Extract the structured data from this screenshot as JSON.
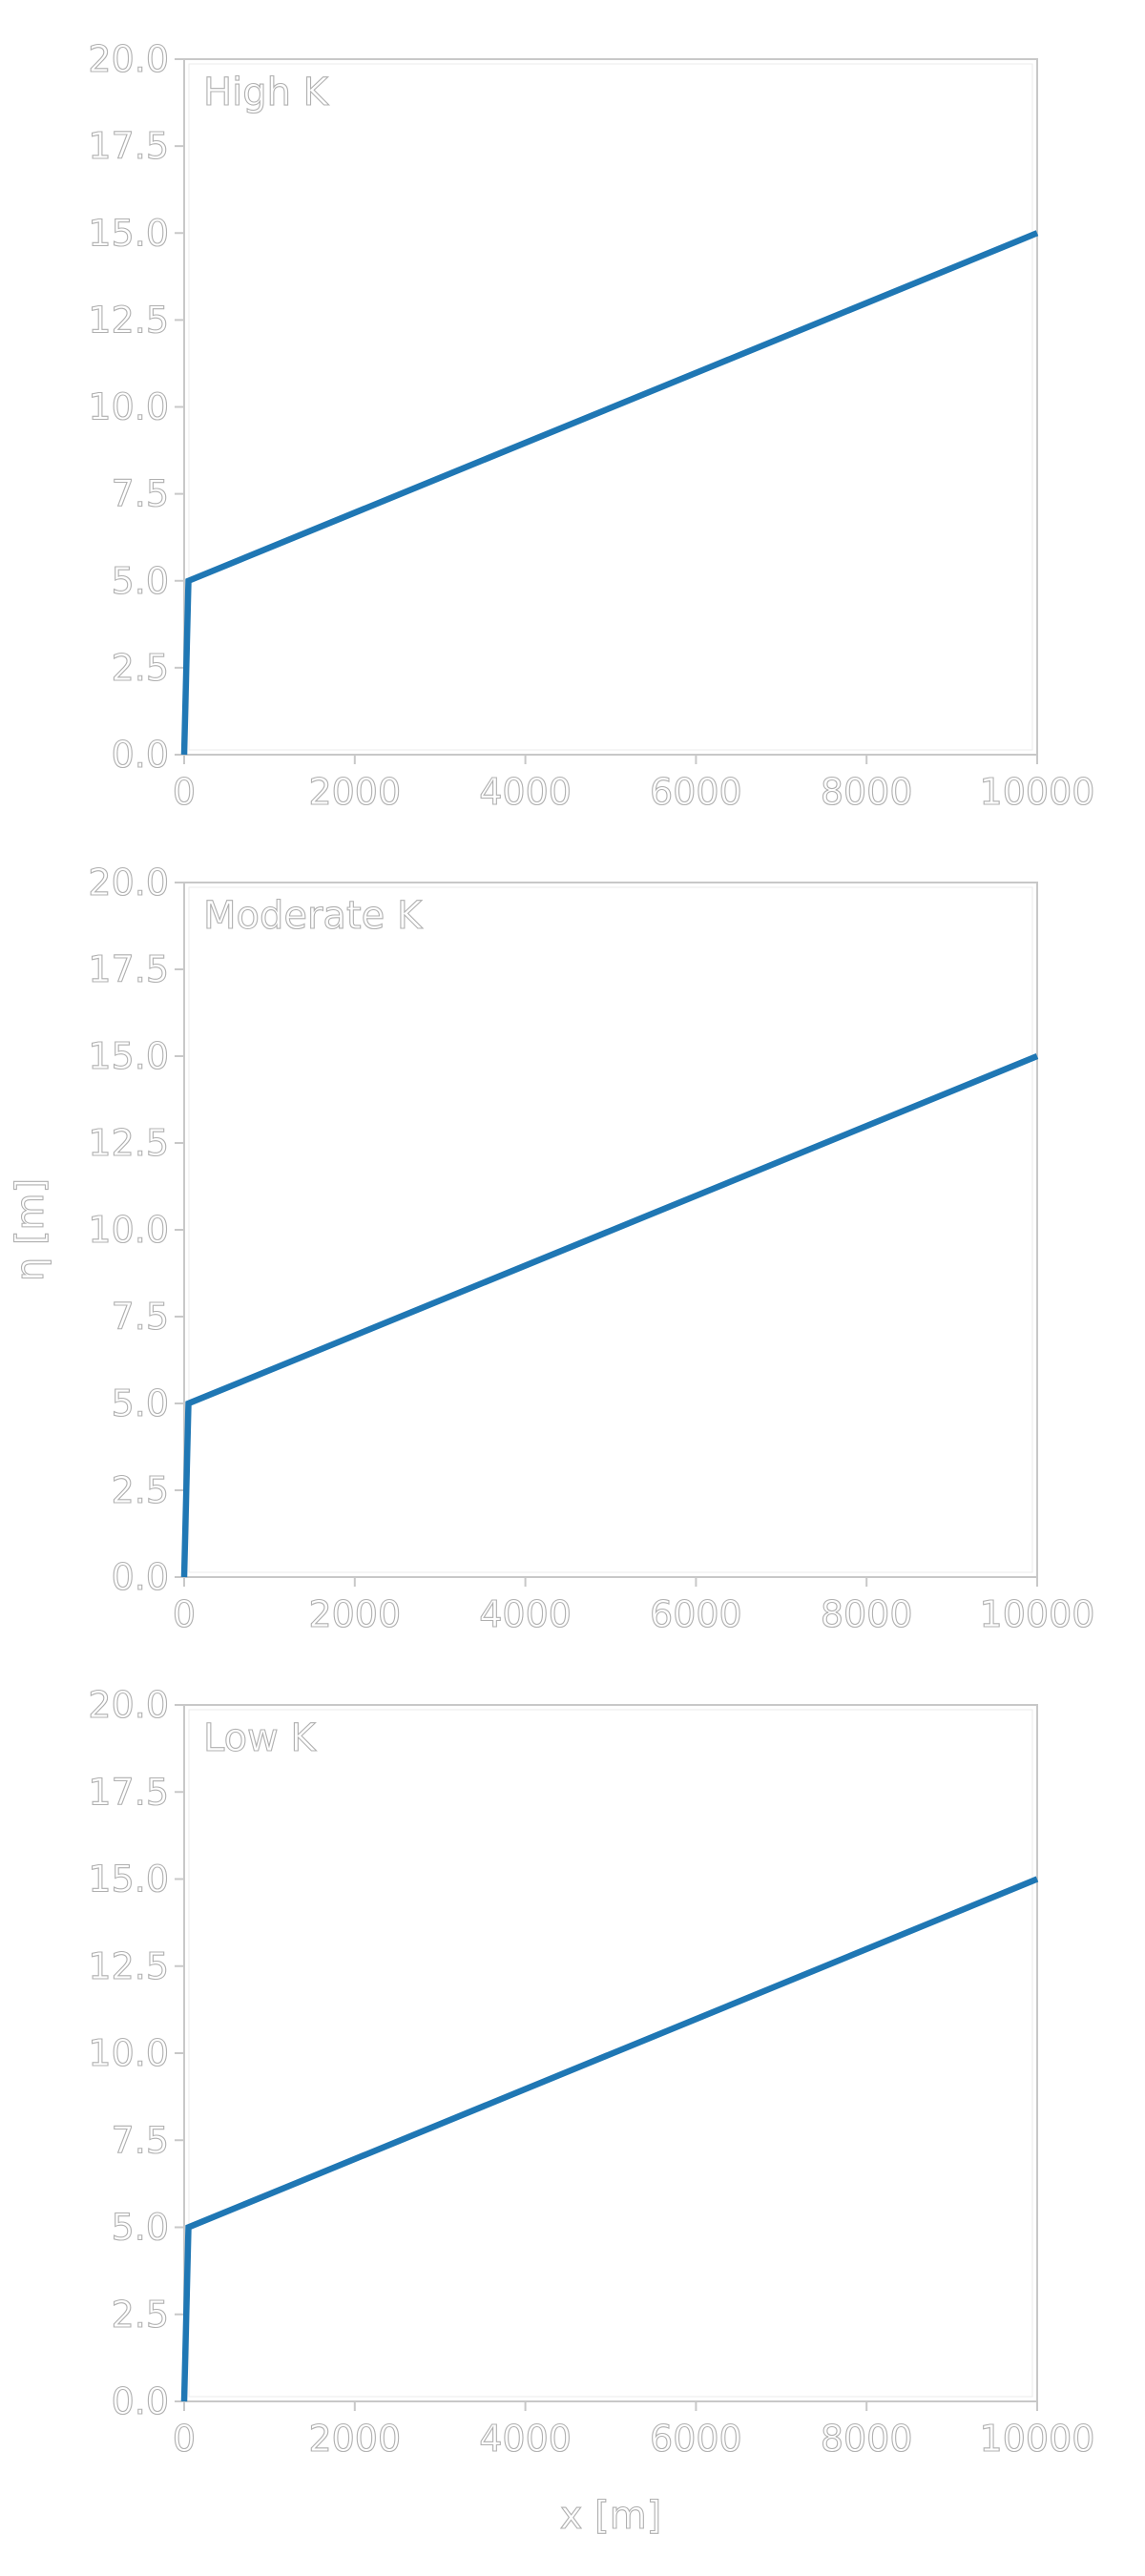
{
  "chart_data": [
    {
      "type": "line",
      "title": "High K",
      "xlabel": "",
      "ylabel": "",
      "xlim": [
        0,
        10000
      ],
      "ylim": [
        0,
        20
      ],
      "xticks": [
        0,
        2000,
        4000,
        6000,
        8000,
        10000
      ],
      "xtick_labels": [
        "0",
        "2000",
        "4000",
        "6000",
        "8000",
        "10000"
      ],
      "yticks": [
        0,
        2.5,
        5,
        7.5,
        10,
        12.5,
        15,
        17.5,
        20
      ],
      "ytick_labels": [
        "0.0",
        "2.5",
        "5.0",
        "7.5",
        "10.0",
        "12.5",
        "15.0",
        "17.5",
        "20.0"
      ],
      "grid": false,
      "series": [
        {
          "x": [
            0,
            50,
            10000
          ],
          "y": [
            0,
            5,
            15
          ]
        }
      ]
    },
    {
      "type": "line",
      "title": "Moderate K",
      "xlabel": "",
      "ylabel": "η [m]",
      "xlim": [
        0,
        10000
      ],
      "ylim": [
        0,
        20
      ],
      "xticks": [
        0,
        2000,
        4000,
        6000,
        8000,
        10000
      ],
      "xtick_labels": [
        "0",
        "2000",
        "4000",
        "6000",
        "8000",
        "10000"
      ],
      "yticks": [
        0,
        2.5,
        5,
        7.5,
        10,
        12.5,
        15,
        17.5,
        20
      ],
      "ytick_labels": [
        "0.0",
        "2.5",
        "5.0",
        "7.5",
        "10.0",
        "12.5",
        "15.0",
        "17.5",
        "20.0"
      ],
      "grid": false,
      "series": [
        {
          "x": [
            0,
            50,
            10000
          ],
          "y": [
            0,
            5,
            15
          ]
        }
      ]
    },
    {
      "type": "line",
      "title": "Low K",
      "xlabel": "x [m]",
      "ylabel": "",
      "xlim": [
        0,
        10000
      ],
      "ylim": [
        0,
        20
      ],
      "xticks": [
        0,
        2000,
        4000,
        6000,
        8000,
        10000
      ],
      "xtick_labels": [
        "0",
        "2000",
        "4000",
        "6000",
        "8000",
        "10000"
      ],
      "yticks": [
        0,
        2.5,
        5,
        7.5,
        10,
        12.5,
        15,
        17.5,
        20
      ],
      "ytick_labels": [
        "0.0",
        "2.5",
        "5.0",
        "7.5",
        "10.0",
        "12.5",
        "15.0",
        "17.5",
        "20.0"
      ],
      "grid": false,
      "series": [
        {
          "x": [
            0,
            50,
            10000
          ],
          "y": [
            0,
            5,
            15
          ]
        }
      ]
    }
  ],
  "colors": {
    "series": "#1f77b4"
  }
}
